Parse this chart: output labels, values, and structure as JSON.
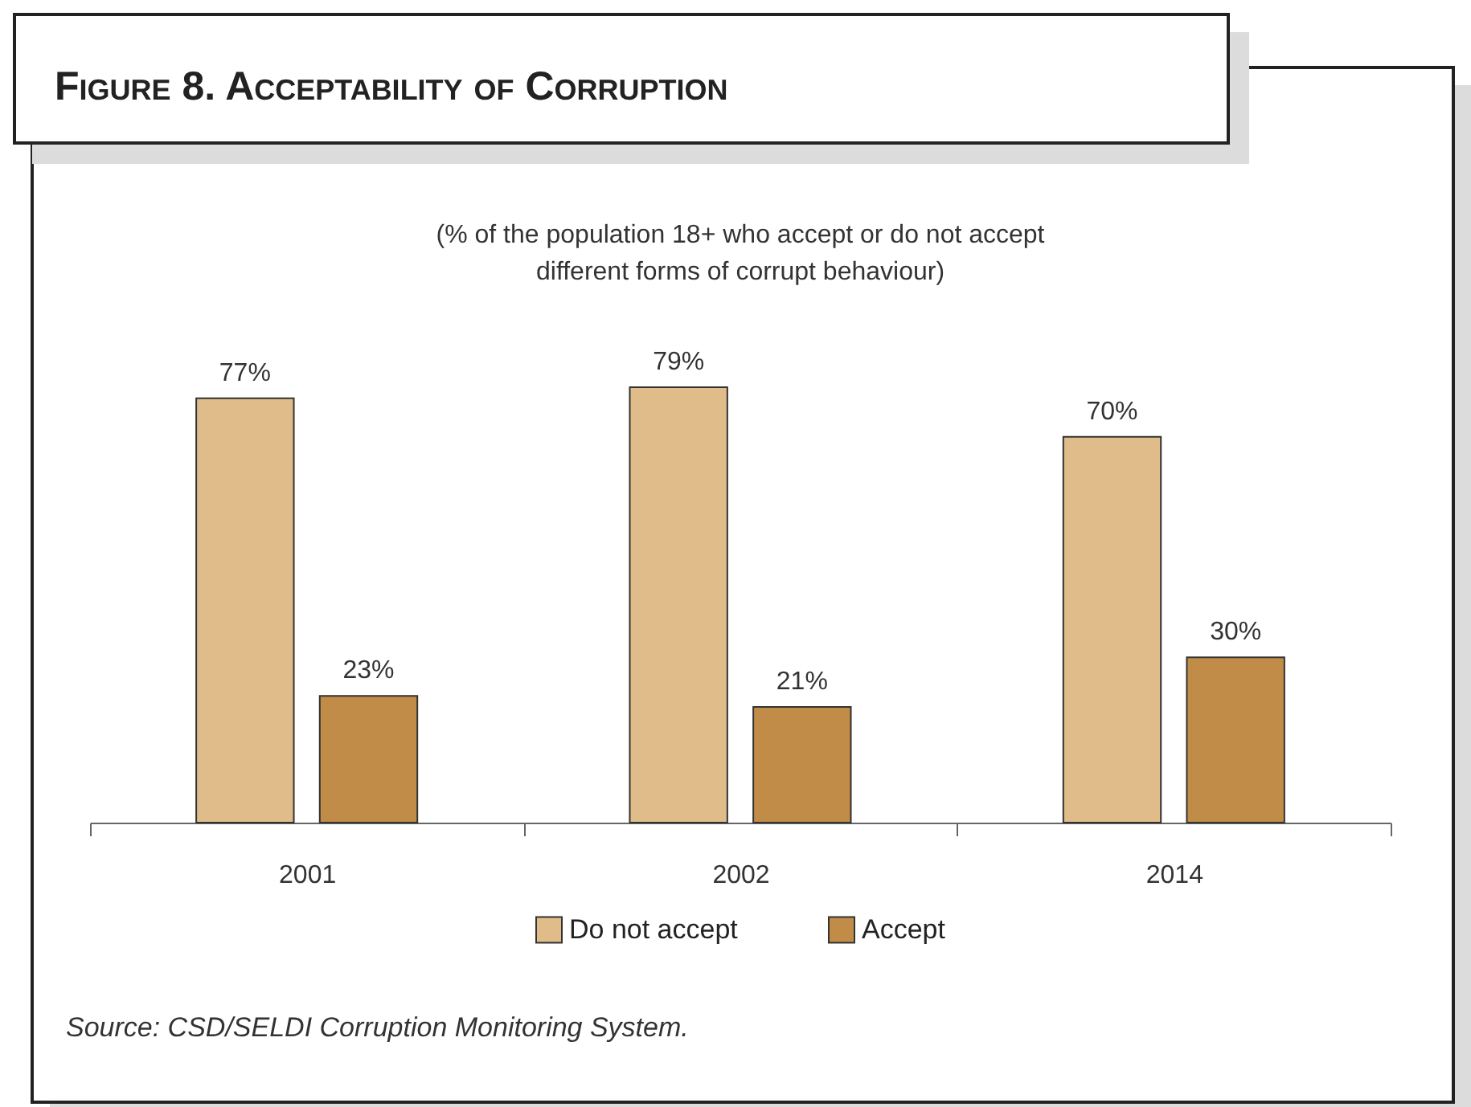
{
  "chart_data": {
    "type": "bar",
    "title": "Figure 8. Acceptability of Corruption",
    "subtitle": "(% of the population 18+ who accept or do not accept different forms of corrupt behaviour)",
    "categories": [
      "2001",
      "2002",
      "2014"
    ],
    "series": [
      {
        "name": "Do not accept",
        "color": "#dfbc8a",
        "values": [
          77,
          79,
          70
        ],
        "value_labels": [
          "77%",
          "79%",
          "70%"
        ]
      },
      {
        "name": "Accept",
        "color": "#c08c48",
        "values": [
          23,
          21,
          30
        ],
        "value_labels": [
          "23%",
          "21%",
          "30%"
        ]
      }
    ],
    "legend": "bottom",
    "annotations": [
      "Source: CSD/SELDI Corruption Monitoring System."
    ]
  }
}
